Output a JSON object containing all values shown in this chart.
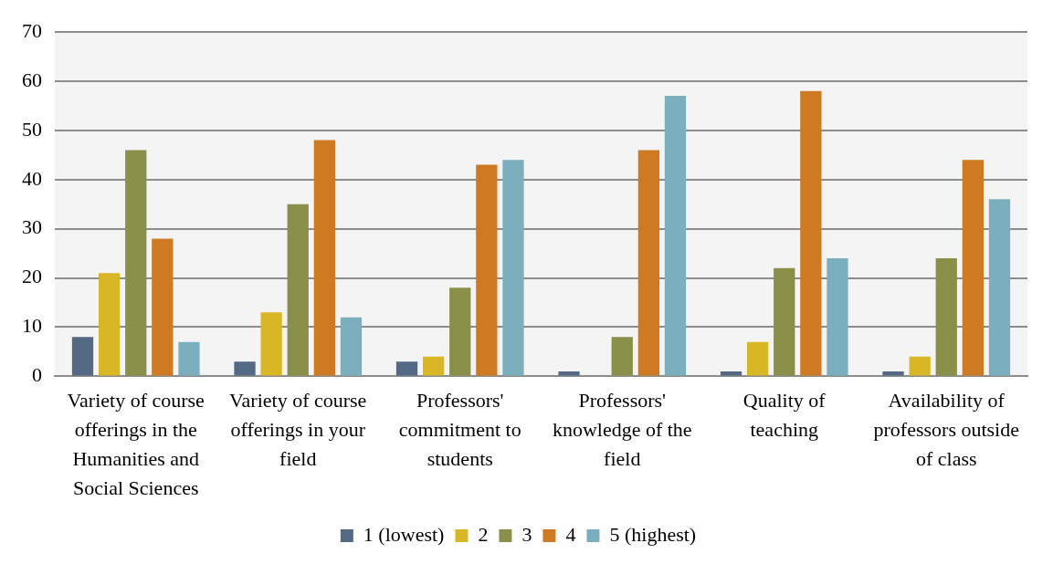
{
  "chart_data": {
    "type": "bar",
    "categories": [
      "Variety of course offerings in the Humanities and Social Sciences",
      "Variety of course offerings in your field",
      "Professors' commitment to students",
      "Professors' knowledge of the field",
      "Quality of teaching",
      "Availability of professors outside of class"
    ],
    "series": [
      {
        "name": "1 (lowest)",
        "color": "#546a84",
        "values": [
          8,
          3,
          3,
          1,
          1,
          1
        ]
      },
      {
        "name": "2",
        "color": "#d8b626",
        "values": [
          21,
          13,
          4,
          0,
          7,
          4
        ]
      },
      {
        "name": "3",
        "color": "#8a904a",
        "values": [
          46,
          35,
          18,
          8,
          22,
          24
        ]
      },
      {
        "name": "4",
        "color": "#cd7a22",
        "values": [
          28,
          48,
          43,
          46,
          58,
          44
        ]
      },
      {
        "name": "5 (highest)",
        "color": "#7cafbe",
        "values": [
          7,
          12,
          44,
          57,
          24,
          36
        ]
      }
    ],
    "ylim": [
      0,
      70
    ],
    "yticks": [
      0,
      10,
      20,
      30,
      40,
      50,
      60,
      70
    ],
    "grid": "y",
    "legend": "bottom"
  }
}
